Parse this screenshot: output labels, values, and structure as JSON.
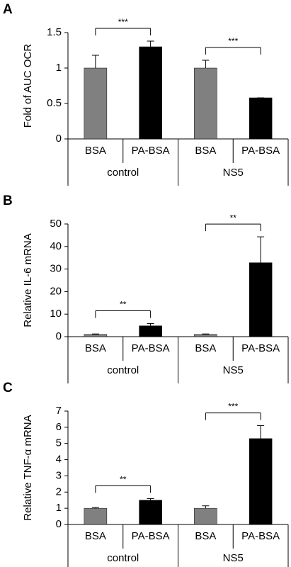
{
  "chart_data": [
    {
      "type": "bar",
      "panel": "A",
      "ylabel": "Fold of AUC OCR",
      "categories": [
        "BSA",
        "PA-BSA",
        "BSA",
        "PA-BSA"
      ],
      "groups": [
        "control",
        "NS5"
      ],
      "values": [
        1.0,
        1.3,
        1.0,
        0.58
      ],
      "errors": [
        0.18,
        0.08,
        0.11,
        0.0
      ],
      "colors": [
        "#808080",
        "#000000",
        "#808080",
        "#000000"
      ],
      "ylim": [
        0,
        1.5
      ],
      "yticks": [
        0,
        0.5,
        1,
        1.5
      ],
      "significance": [
        {
          "label": "***",
          "from": 0,
          "to": 1
        },
        {
          "label": "***",
          "from": 2,
          "to": 3
        }
      ]
    },
    {
      "type": "bar",
      "panel": "B",
      "ylabel": "Relative IL-6 mRNA",
      "categories": [
        "BSA",
        "PA-BSA",
        "BSA",
        "PA-BSA"
      ],
      "groups": [
        "control",
        "NS5"
      ],
      "values": [
        1.0,
        4.8,
        1.0,
        32.8
      ],
      "errors": [
        0.2,
        1.0,
        0.2,
        11.5
      ],
      "colors": [
        "#808080",
        "#000000",
        "#808080",
        "#000000"
      ],
      "ylim": [
        0,
        50
      ],
      "yticks": [
        0,
        10,
        20,
        30,
        40,
        50
      ],
      "significance": [
        {
          "label": "**",
          "from": 0,
          "to": 1
        },
        {
          "label": "**",
          "from": 2,
          "to": 3
        }
      ]
    },
    {
      "type": "bar",
      "panel": "C",
      "ylabel": "Relative TNF-α mRNA",
      "categories": [
        "BSA",
        "PA-BSA",
        "BSA",
        "PA-BSA"
      ],
      "groups": [
        "control",
        "NS5"
      ],
      "values": [
        1.0,
        1.5,
        1.0,
        5.3
      ],
      "errors": [
        0.05,
        0.1,
        0.15,
        0.8
      ],
      "colors": [
        "#808080",
        "#000000",
        "#808080",
        "#000000"
      ],
      "ylim": [
        0,
        7
      ],
      "yticks": [
        0,
        1,
        2,
        3,
        4,
        5,
        6,
        7
      ],
      "significance": [
        {
          "label": "**",
          "from": 0,
          "to": 1
        },
        {
          "label": "***",
          "from": 2,
          "to": 3
        }
      ]
    }
  ]
}
